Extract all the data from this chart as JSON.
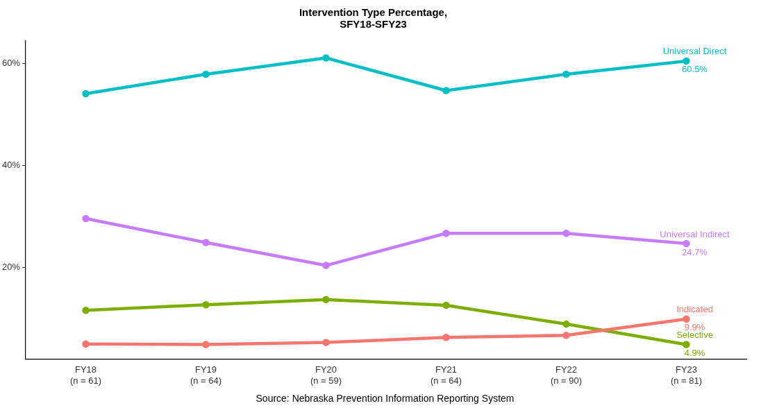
{
  "chart_data": {
    "type": "line",
    "title": "Intervention Type Percentage,\nSFY18-SFY23",
    "categories": [
      "FY18\n(n = 61)",
      "FY19\n(n = 64)",
      "FY20\n(n = 59)",
      "FY21\n(n = 64)",
      "FY22\n(n = 90)",
      "FY23\n(n = 81)"
    ],
    "series": [
      {
        "name": "Universal Direct",
        "color": "#00bfc4",
        "values": [
          54.1,
          57.9,
          61.1,
          54.7,
          57.9,
          60.5
        ],
        "value_labels": [
          null,
          null,
          null,
          null,
          null,
          "60.5%"
        ]
      },
      {
        "name": "Universal Indirect",
        "color": "#c77cff",
        "values": [
          29.6,
          24.9,
          20.4,
          26.7,
          26.7,
          24.7
        ],
        "value_labels": [
          null,
          null,
          null,
          null,
          null,
          "24.7%"
        ]
      },
      {
        "name": "Indicated",
        "color": "#f8766d",
        "values": [
          5.0,
          4.9,
          5.3,
          6.3,
          6.7,
          9.9
        ],
        "value_labels": [
          null,
          null,
          null,
          null,
          null,
          "9.9%"
        ]
      },
      {
        "name": "Selective",
        "color": "#7cae00",
        "values": [
          11.6,
          12.7,
          13.7,
          12.6,
          8.9,
          4.9
        ],
        "value_labels": [
          null,
          null,
          null,
          null,
          null,
          "4.9%"
        ]
      }
    ],
    "ylim": [
      2,
      64.5
    ],
    "yticks": [
      {
        "value": 20,
        "label": "20%"
      },
      {
        "value": 40,
        "label": "40%"
      },
      {
        "value": 60,
        "label": "60%"
      }
    ],
    "grid": false,
    "legend": false,
    "marker": "circle",
    "line_style": "solid",
    "annotations": [
      "Source: Nebraska Prevention Information Reporting System"
    ]
  }
}
